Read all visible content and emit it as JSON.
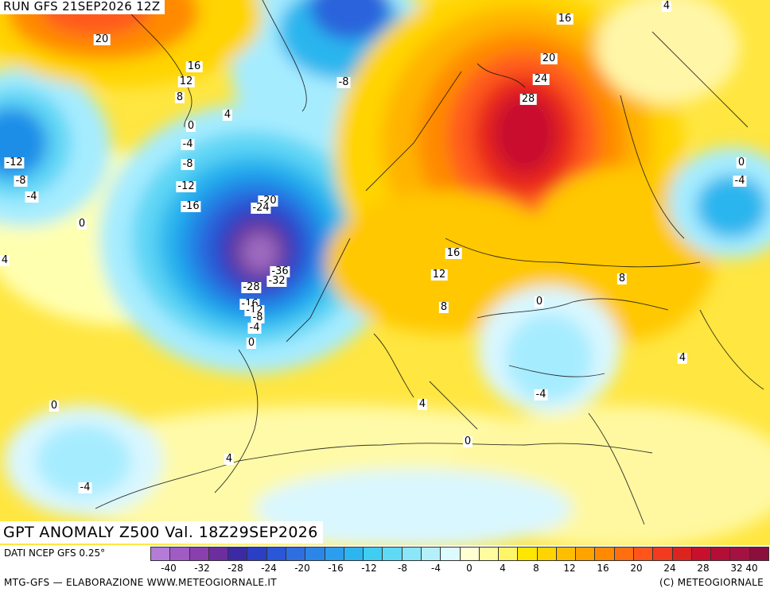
{
  "header": {
    "run_title": "RUN GFS 21SEP2026 12Z"
  },
  "map": {
    "title": "GPT ANOMALY Z500 Val. 18Z29SEP2026",
    "contour_labels": [
      {
        "text": "20"
      },
      {
        "text": "16"
      },
      {
        "text": "12"
      },
      {
        "text": "8"
      },
      {
        "text": "4"
      },
      {
        "text": "0"
      },
      {
        "text": "-4"
      },
      {
        "text": "-8"
      },
      {
        "text": "-12"
      },
      {
        "text": "-16"
      },
      {
        "text": "-20"
      },
      {
        "text": "-24"
      },
      {
        "text": "-36"
      },
      {
        "text": "-32"
      },
      {
        "text": "-28"
      },
      {
        "text": "-16"
      },
      {
        "text": "-12"
      },
      {
        "text": "-8"
      },
      {
        "text": "-4"
      },
      {
        "text": "0"
      },
      {
        "text": "-8"
      },
      {
        "text": "-12"
      },
      {
        "text": "-8"
      },
      {
        "text": "-4"
      },
      {
        "text": "0"
      },
      {
        "text": "4"
      },
      {
        "text": "16"
      },
      {
        "text": "20"
      },
      {
        "text": "24"
      },
      {
        "text": "28"
      },
      {
        "text": "4"
      },
      {
        "text": "0"
      },
      {
        "text": "-4"
      },
      {
        "text": "16"
      },
      {
        "text": "12"
      },
      {
        "text": "8"
      },
      {
        "text": "8"
      },
      {
        "text": "0"
      },
      {
        "text": "4"
      },
      {
        "text": "-4"
      },
      {
        "text": "4"
      },
      {
        "text": "0"
      },
      {
        "text": "0"
      },
      {
        "text": "4"
      },
      {
        "text": "-4"
      }
    ],
    "fields": {
      "colors": {
        "ocean_base": "#ffffc0",
        "neg_scale": [
          "#d9f7ff",
          "#a6ecff",
          "#5fd6f5",
          "#2cb5ee",
          "#1e8ee8",
          "#2a63db",
          "#2a3fc4",
          "#3b2aa4",
          "#6a3a9d",
          "#9e6ac0"
        ],
        "pos_scale": [
          "#fff6a8",
          "#ffee55",
          "#ffd400",
          "#ffb300",
          "#ff8a00",
          "#ff5a1a",
          "#e8281e",
          "#c8102e",
          "#a31240"
        ]
      }
    }
  },
  "legend": {
    "data_source": "DATI NCEP GFS 0.25°",
    "colors": [
      "#b47cd6",
      "#a05cc4",
      "#8a3fae",
      "#6c2e9e",
      "#3b2aa4",
      "#2a3fc4",
      "#2a56d8",
      "#2f6ee0",
      "#2c86e8",
      "#2c9eee",
      "#2cb5ee",
      "#3fcdf2",
      "#5fdaf5",
      "#8ae6f8",
      "#b5f0fa",
      "#dcfbff",
      "#ffffd2",
      "#fffca0",
      "#fff566",
      "#ffe600",
      "#ffd400",
      "#ffbe00",
      "#ffa300",
      "#ff8a00",
      "#ff6f0f",
      "#ff551a",
      "#f23a1e",
      "#dc241f",
      "#c8102e",
      "#b40e36",
      "#a31240",
      "#8c0e3c"
    ],
    "ticks": [
      "-40",
      "-32",
      "-28",
      "-24",
      "-20",
      "-16",
      "-12",
      "-8",
      "-4",
      "0",
      "4",
      "8",
      "12",
      "16",
      "20",
      "24",
      "28",
      "32",
      "40"
    ],
    "credit_left": "MTG-GFS — ELABORAZIONE WWW.METEOGIORNALE.IT",
    "credit_right": "(C) METEOGIORNALE"
  }
}
